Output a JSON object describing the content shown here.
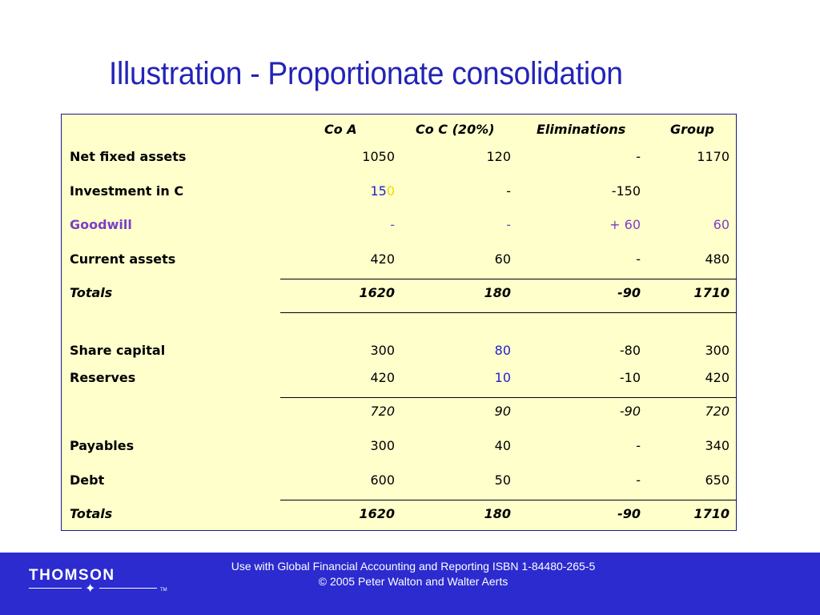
{
  "title": "Illustration - Proportionate consolidation",
  "table": {
    "headers": {
      "co_a": "Co A",
      "co_c": "Co C (20%)",
      "elim": "Eliminations",
      "group": "Group"
    },
    "rows": {
      "net_fixed": {
        "label": "Net fixed assets",
        "co_a": "1050",
        "co_c": "120",
        "elim": "-",
        "group": "1170"
      },
      "investment": {
        "label": "Investment in C",
        "co_a_main": "15",
        "co_a_tail": "0",
        "co_c": "-",
        "elim": "-150",
        "group": ""
      },
      "goodwill": {
        "label": "Goodwill",
        "co_a": "-",
        "co_c": "-",
        "elim": "+ 60",
        "group": "60"
      },
      "current_assets": {
        "label": "Current assets",
        "co_a": "420",
        "co_c": "60",
        "elim": "-",
        "group": "480"
      },
      "totals_assets": {
        "label": "Totals",
        "co_a": "1620",
        "co_c": "180",
        "elim": "-90",
        "group": "1710"
      },
      "share_capital": {
        "label": "Share capital",
        "co_a": "300",
        "co_c": "80",
        "elim": "-80",
        "group": "300"
      },
      "reserves": {
        "label": "Reserves",
        "co_a": "420",
        "co_c": "10",
        "elim": "-10",
        "group": "420"
      },
      "equity_subtotal": {
        "label": "",
        "co_a": "720",
        "co_c": "90",
        "elim": "-90",
        "group": "720"
      },
      "payables": {
        "label": "Payables",
        "co_a": "300",
        "co_c": "40",
        "elim": "-",
        "group": "340"
      },
      "debt": {
        "label": "Debt",
        "co_a": "600",
        "co_c": "50",
        "elim": "-",
        "group": "650"
      },
      "totals_liabilities": {
        "label": "Totals",
        "co_a": "1620",
        "co_c": "180",
        "elim": "-90",
        "group": "1710"
      }
    }
  },
  "footer": {
    "logo": "THOMSON",
    "logo_tm": "TM",
    "line1": "Use with Global Financial Accounting and Reporting ISBN 1-84480-265-5",
    "line2": "© 2005 Peter Walton and Walter Aerts"
  },
  "colors": {
    "title": "#2323b8",
    "table_bg": "#ffffcc",
    "goodwill": "#7a3fc8",
    "highlight_blue": "#1f1fd0",
    "highlight_yellow": "#f2d800",
    "footer_bg": "#2b2bcf"
  }
}
